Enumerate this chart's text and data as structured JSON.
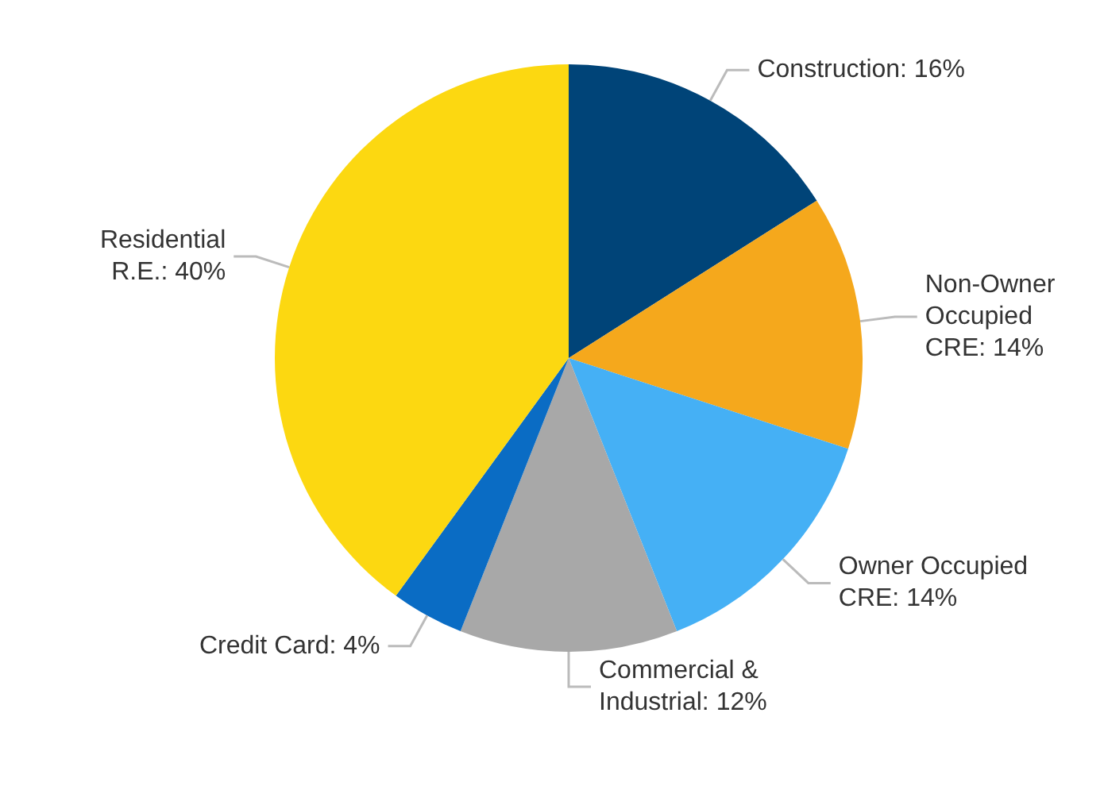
{
  "chart_data": {
    "type": "pie",
    "categories": [
      "Construction",
      "Non-Owner Occupied CRE",
      "Owner Occupied CRE",
      "Commercial & Industrial",
      "Credit Card",
      "Residential R.E."
    ],
    "values": [
      16,
      14,
      14,
      12,
      4,
      40
    ],
    "value_labels": [
      "16%",
      "14%",
      "14%",
      "12%",
      "4%",
      "40%"
    ],
    "colors": [
      "#004478",
      "#f5a81c",
      "#45b0f5",
      "#a8a8a8",
      "#0a6cc4",
      "#fcd811"
    ],
    "legend": false
  }
}
